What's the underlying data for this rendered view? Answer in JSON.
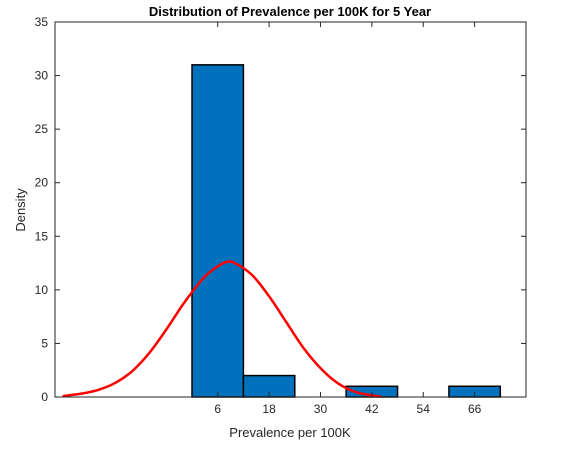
{
  "chart_data": {
    "type": "bar",
    "title": "Distribution of Prevalence per 100K for 5 Year",
    "xlabel": "Prevalence per 100K",
    "ylabel": "Density",
    "xlim": [
      -32,
      78
    ],
    "ylim": [
      0,
      35
    ],
    "xticks": [
      6,
      18,
      30,
      42,
      54,
      66
    ],
    "yticks": [
      0,
      5,
      10,
      15,
      20,
      25,
      30,
      35
    ],
    "grid": false,
    "legend": "none",
    "bar_color": "#0072BD",
    "bar_edge_color": "#000000",
    "bins": [
      {
        "x0": 0,
        "x1": 12,
        "value": 31
      },
      {
        "x0": 12,
        "x1": 24,
        "value": 2
      },
      {
        "x0": 24,
        "x1": 36,
        "value": 0
      },
      {
        "x0": 36,
        "x1": 48,
        "value": 1
      },
      {
        "x0": 48,
        "x1": 60,
        "value": 0
      },
      {
        "x0": 60,
        "x1": 72,
        "value": 1
      }
    ],
    "curve": {
      "type": "normal-fit",
      "color": "#FF0000",
      "x": [
        -30,
        -26,
        -22,
        -18,
        -14,
        -10,
        -6,
        -2,
        2,
        4,
        6,
        8,
        10,
        14,
        18,
        22,
        26,
        30,
        34,
        38,
        42,
        44
      ],
      "y": [
        0.1,
        0.3,
        0.65,
        1.3,
        2.4,
        4.1,
        6.3,
        8.7,
        10.8,
        11.6,
        12.2,
        12.6,
        12.5,
        11.4,
        9.4,
        7.0,
        4.6,
        2.7,
        1.3,
        0.5,
        0.15,
        0.05
      ]
    }
  }
}
